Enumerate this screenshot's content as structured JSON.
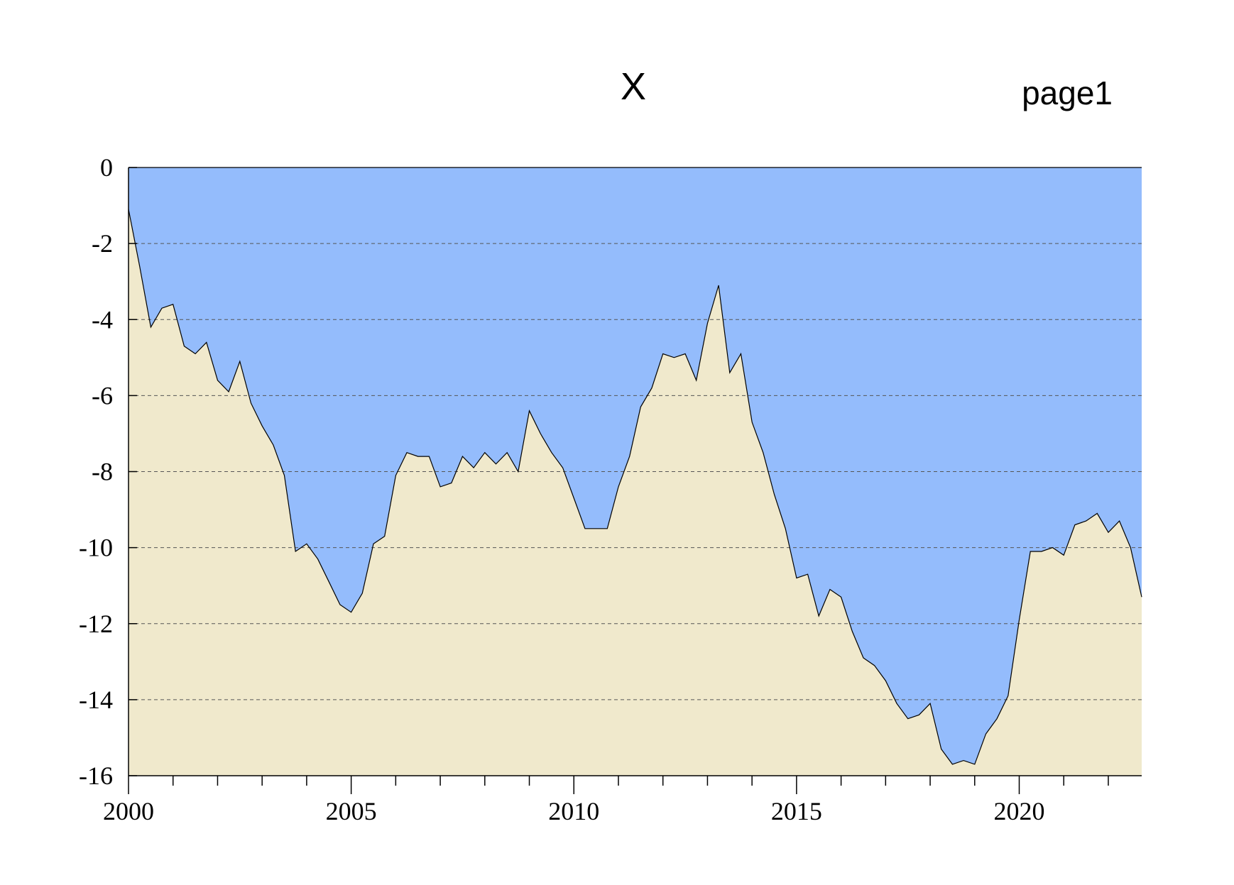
{
  "title": "X",
  "corner_label": "page1",
  "chart_data": {
    "type": "area",
    "title": "X",
    "xlabel": "",
    "ylabel": "",
    "xlim": [
      2000.0,
      2022.75
    ],
    "ylim": [
      -16,
      0
    ],
    "grid": true,
    "legend": "none",
    "xticks": [
      2000,
      2005,
      2010,
      2015,
      2020
    ],
    "yticks": [
      0,
      -2,
      -4,
      -6,
      -8,
      -10,
      -12,
      -14,
      -16
    ],
    "colors": {
      "above_fill": "#94bcfc",
      "below_fill": "#f0e9cc",
      "line": "#000000",
      "grid": "#555555"
    },
    "series": [
      {
        "x": [
          2000.0,
          2000.25,
          2000.5,
          2000.75,
          2001.0,
          2001.25,
          2001.5,
          2001.75,
          2002.0,
          2002.25,
          2002.5,
          2002.75,
          2003.0,
          2003.25,
          2003.5,
          2003.75,
          2004.0,
          2004.25,
          2004.5,
          2004.75,
          2005.0,
          2005.25,
          2005.5,
          2005.75,
          2006.0,
          2006.25,
          2006.5,
          2006.75,
          2007.0,
          2007.25,
          2007.5,
          2007.75,
          2008.0,
          2008.25,
          2008.5,
          2008.75,
          2009.0,
          2009.25,
          2009.5,
          2009.75,
          2010.0,
          2010.25,
          2010.5,
          2010.75,
          2011.0,
          2011.25,
          2011.5,
          2011.75,
          2012.0,
          2012.25,
          2012.5,
          2012.75,
          2013.0,
          2013.25,
          2013.5,
          2013.75,
          2014.0,
          2014.25,
          2014.5,
          2014.75,
          2015.0,
          2015.25,
          2015.5,
          2015.75,
          2016.0,
          2016.25,
          2016.5,
          2016.75,
          2017.0,
          2017.25,
          2017.5,
          2017.75,
          2018.0,
          2018.25,
          2018.5,
          2018.75,
          2019.0,
          2019.25,
          2019.5,
          2019.75,
          2020.0,
          2020.25,
          2020.5,
          2020.75,
          2021.0,
          2021.25,
          2021.5,
          2021.75,
          2022.0,
          2022.25,
          2022.5,
          2022.75
        ],
        "values": [
          -1.1,
          -2.6,
          -4.2,
          -3.7,
          -3.6,
          -4.7,
          -4.9,
          -4.6,
          -5.6,
          -5.9,
          -5.1,
          -6.2,
          -6.8,
          -7.3,
          -8.1,
          -10.1,
          -9.9,
          -10.3,
          -10.9,
          -11.5,
          -11.7,
          -11.2,
          -9.9,
          -9.7,
          -8.1,
          -7.5,
          -7.6,
          -7.6,
          -8.4,
          -8.3,
          -7.6,
          -7.9,
          -7.5,
          -7.8,
          -7.5,
          -8.0,
          -6.4,
          -7.0,
          -7.5,
          -7.9,
          -8.7,
          -9.5,
          -9.5,
          -9.5,
          -8.4,
          -7.6,
          -6.3,
          -5.8,
          -4.9,
          -5.0,
          -4.9,
          -5.6,
          -4.1,
          -3.1,
          -5.4,
          -4.9,
          -6.7,
          -7.5,
          -8.6,
          -9.5,
          -10.8,
          -10.7,
          -11.8,
          -11.1,
          -11.3,
          -12.2,
          -12.9,
          -13.1,
          -13.5,
          -14.1,
          -14.5,
          -14.4,
          -14.1,
          -15.3,
          -15.7,
          -15.6,
          -15.7,
          -14.9,
          -14.5,
          -13.9,
          -11.9,
          -10.1,
          -10.1,
          -10.0,
          -10.2,
          -9.4,
          -9.3,
          -9.1,
          -9.6,
          -9.3,
          -10.0,
          -11.3
        ]
      }
    ]
  }
}
